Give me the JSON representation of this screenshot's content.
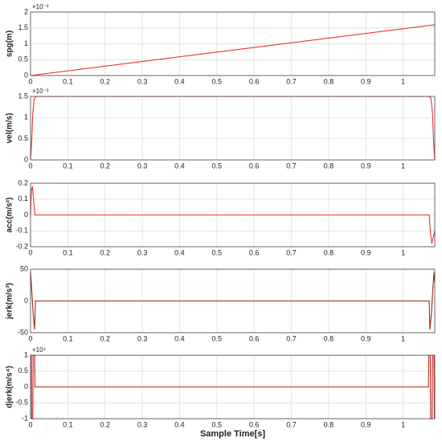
{
  "chart_data": [
    {
      "type": "line",
      "ylabel": "spg(m)",
      "exponent": "×10⁻³",
      "color": "#e8332f",
      "x": [
        0,
        1.085
      ],
      "values": [
        0,
        1.6
      ],
      "xlim": [
        0,
        1.085
      ],
      "ylim": [
        0,
        2
      ],
      "xticks": [
        0,
        0.1,
        0.2,
        0.3,
        0.4,
        0.5,
        0.6,
        0.7,
        0.8,
        0.9,
        1
      ],
      "yticks": [
        0,
        0.5,
        1,
        1.5,
        2
      ],
      "grid": true
    },
    {
      "type": "line",
      "ylabel": "vel(m/s)",
      "exponent": "×10⁻³",
      "color": "#e8332f",
      "x": [
        0,
        0.003,
        0.006,
        0.01,
        0.015,
        1.07,
        1.075,
        1.079,
        1.082,
        1.085
      ],
      "values": [
        0,
        0.4,
        1.1,
        1.45,
        1.5,
        1.5,
        1.45,
        1.1,
        0.4,
        0
      ],
      "xlim": [
        0,
        1.085
      ],
      "ylim": [
        0,
        1.5
      ],
      "xticks": [
        0,
        0.1,
        0.2,
        0.3,
        0.4,
        0.5,
        0.6,
        0.7,
        0.8,
        0.9,
        1
      ],
      "yticks": [
        0,
        0.5,
        1,
        1.5
      ],
      "grid": true
    },
    {
      "type": "line",
      "ylabel": "acc(m/s²)",
      "color": "#e8332f",
      "x": [
        0,
        0.002,
        0.005,
        0.008,
        0.012,
        1.07,
        1.073,
        1.077,
        1.08,
        1.085
      ],
      "values": [
        0,
        0.15,
        0.18,
        0.1,
        0,
        0,
        -0.1,
        -0.18,
        -0.15,
        -0.1
      ],
      "xlim": [
        0,
        1.085
      ],
      "ylim": [
        -0.2,
        0.2
      ],
      "xticks": [
        0,
        0.1,
        0.2,
        0.3,
        0.4,
        0.5,
        0.6,
        0.7,
        0.8,
        0.9,
        1
      ],
      "yticks": [
        -0.2,
        -0.1,
        0,
        0.1,
        0.2
      ],
      "grid": true
    },
    {
      "type": "line",
      "ylabel": "jerk(m/s³)",
      "color": "#9a2a16",
      "x": [
        0,
        0.003,
        0.007,
        0.011,
        0.013,
        1.07,
        1.072,
        1.076,
        1.08,
        1.083,
        1.085
      ],
      "values": [
        45,
        20,
        -20,
        -45,
        0,
        0,
        -45,
        -20,
        20,
        45,
        30
      ],
      "xlim": [
        0,
        1.085
      ],
      "ylim": [
        -50,
        50
      ],
      "xticks": [
        0,
        0.1,
        0.2,
        0.3,
        0.4,
        0.5,
        0.6,
        0.7,
        0.8,
        0.9,
        1
      ],
      "yticks": [
        -50,
        0,
        50
      ],
      "grid": true
    },
    {
      "type": "line",
      "ylabel": "djerk(m/s⁴)",
      "exponent": "×10⁴",
      "color": "#c0271c",
      "xlabel": "Sample Time[s]",
      "x": [
        0,
        0.002,
        0.003,
        0.006,
        0.007,
        0.011,
        0.012,
        1.068,
        1.069,
        1.073,
        1.074,
        1.078,
        1.079,
        1.083,
        1.084
      ],
      "values": [
        1,
        1,
        -1,
        -1,
        1,
        1,
        0,
        0,
        1,
        1,
        -1,
        -1,
        1,
        1,
        -1
      ],
      "xlim": [
        0,
        1.085
      ],
      "ylim": [
        -1,
        1
      ],
      "xticks": [
        0,
        0.1,
        0.2,
        0.3,
        0.4,
        0.5,
        0.6,
        0.7,
        0.8,
        0.9,
        1
      ],
      "yticks": [
        -1,
        -0.5,
        0,
        0.5,
        1
      ],
      "grid": true
    }
  ]
}
